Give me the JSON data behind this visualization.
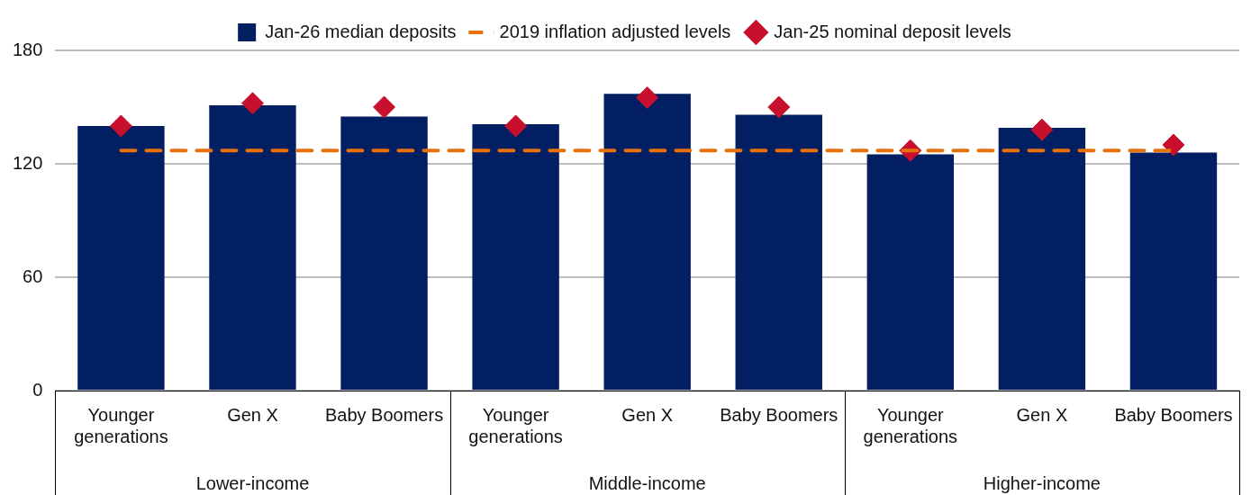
{
  "chart_data": {
    "type": "bar",
    "categories": [
      "Younger generations",
      "Gen X",
      "Baby Boomers",
      "Younger generations",
      "Gen X",
      "Baby Boomers",
      "Younger generations",
      "Gen X",
      "Baby Boomers"
    ],
    "series": [
      {
        "name": "Jan-26 median deposits",
        "color": "#031f63",
        "values": [
          140,
          151,
          145,
          141,
          157,
          146,
          125,
          139,
          126
        ]
      },
      {
        "name": "2019 inflation adjusted levels",
        "type": "line",
        "color": "#e8710a",
        "line_style": "dashed",
        "marker": "none",
        "values": [
          127,
          127,
          127,
          127,
          127,
          127,
          127,
          127,
          127
        ]
      },
      {
        "name": "Jan-25 nominal deposit levels",
        "type": "scatter",
        "color": "#c8102e",
        "marker": "diamond",
        "values": [
          140,
          152,
          150,
          140,
          155,
          150,
          127,
          138,
          130
        ]
      }
    ],
    "annotations": [
      "Lower-income",
      "Middle-income",
      "Higher-income"
    ],
    "ylim": [
      0,
      180
    ],
    "yticks": [
      0,
      60,
      120,
      180
    ],
    "grid": "y",
    "legend": "top"
  }
}
